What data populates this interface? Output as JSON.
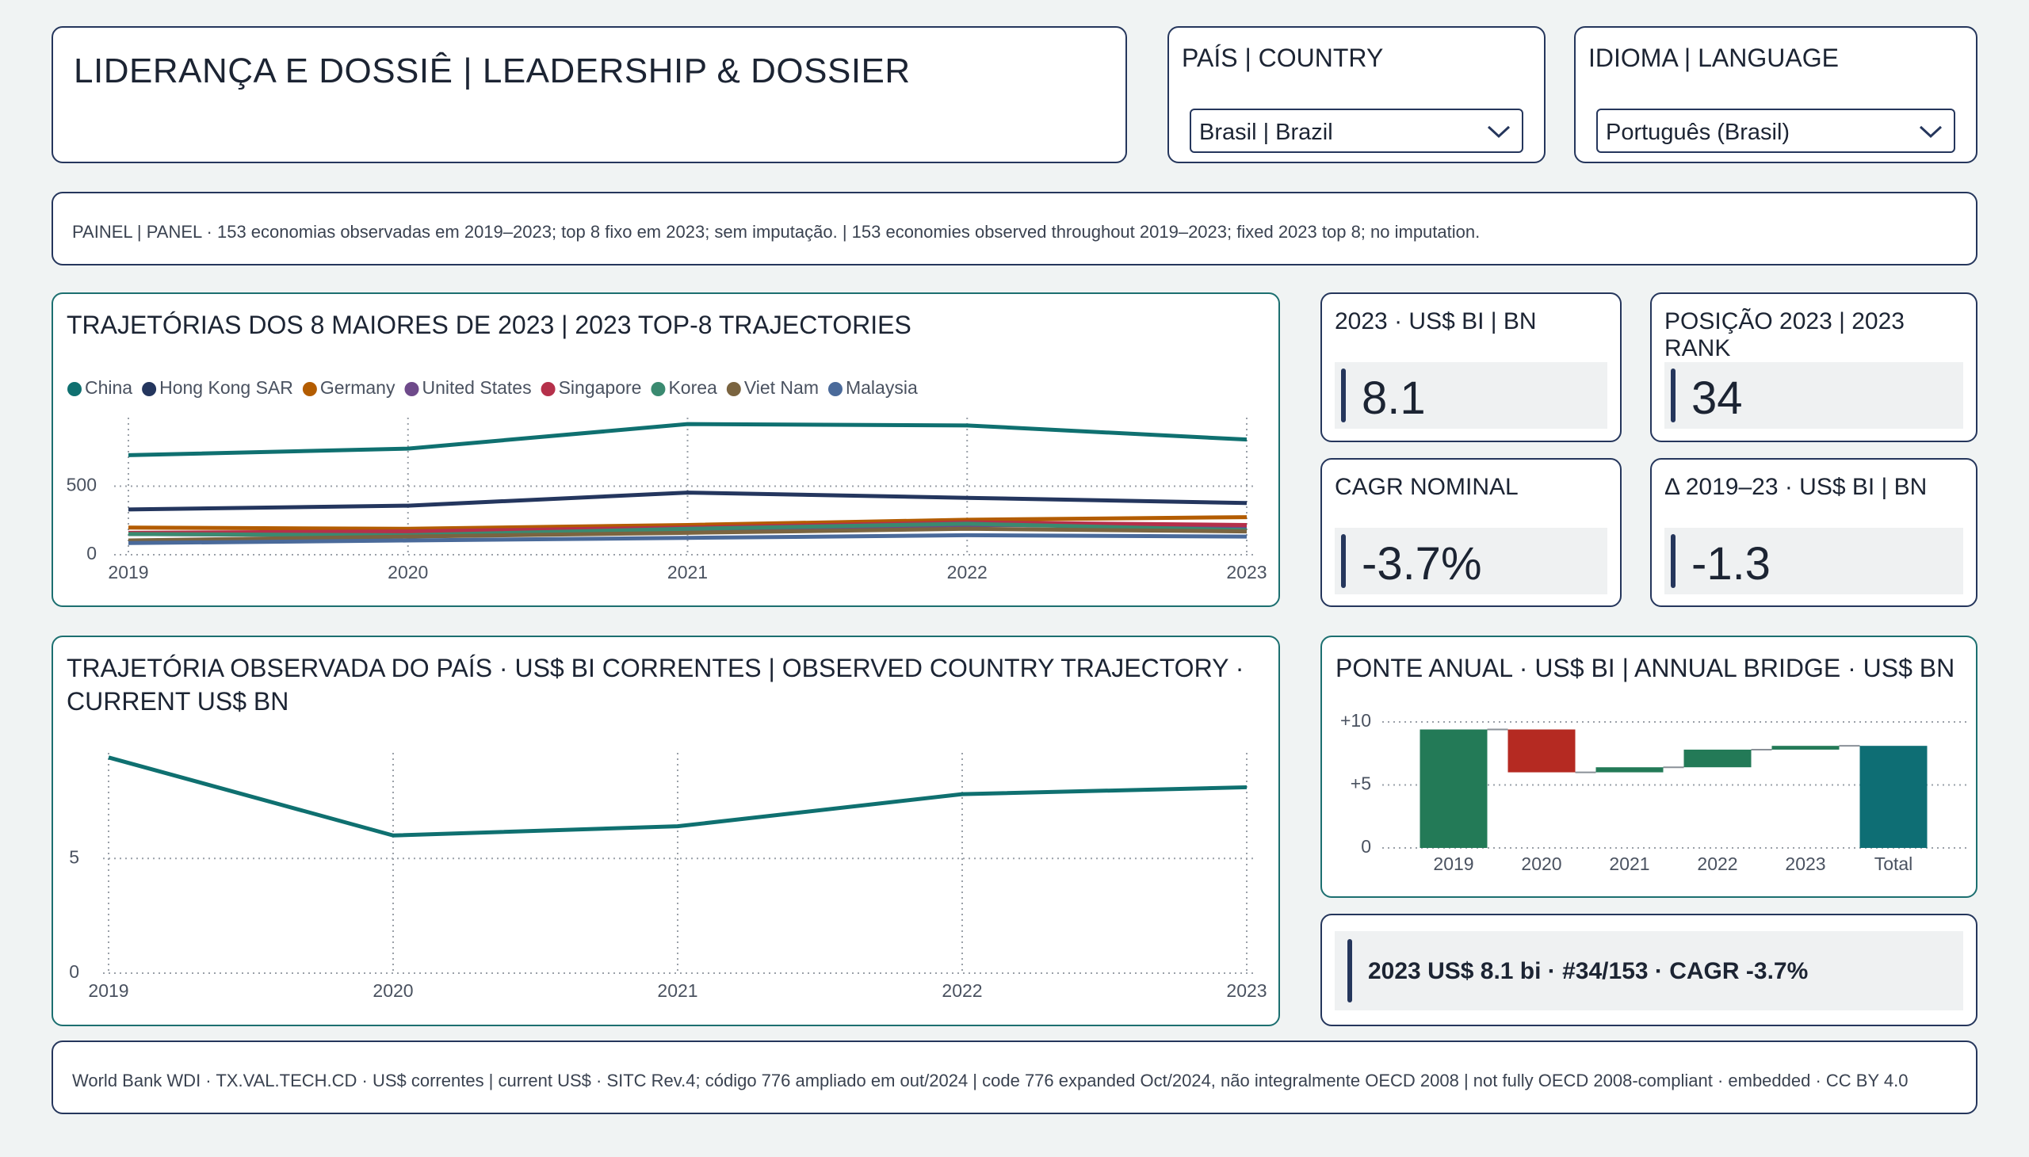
{
  "header": {
    "title": "LIDERANÇA E DOSSIÊ | LEADERSHIP & DOSSIER"
  },
  "filters": [
    {
      "label": "PAÍS | COUNTRY",
      "selected": "Brasil | Brazil"
    },
    {
      "label": "IDIOMA | LANGUAGE",
      "selected": "Português (Brasil)"
    }
  ],
  "panel_note": "PAINEL | PANEL · 153 economias observadas em 2019–2023; top 8 fixo em 2023; sem imputação. | 153 economies observed throughout 2019–2023; fixed 2023 top 8; no imputation.",
  "kpis": [
    {
      "label": "2023 · US$ BI | BN",
      "value": "8.1"
    },
    {
      "label": "POSIÇÃO 2023 | 2023 RANK",
      "value": "34"
    },
    {
      "label": "CAGR NOMINAL",
      "value": "-3.7%"
    },
    {
      "label": "Δ 2019–23 · US$ BI | BN",
      "value": "-1.3"
    }
  ],
  "summary": "2023 US$ 8.1 bi · #34/153 · CAGR -3.7%",
  "footer": "World Bank WDI · TX.VAL.TECH.CD · US$ correntes | current US$ · SITC Rev.4; código 776 ampliado em out/2024 | code 776 expanded Oct/2024, não integralmente OECD 2008 | not fully OECD 2008-compliant · embedded · CC BY 4.0",
  "chart_data": [
    {
      "type": "line",
      "title": "TRAJETÓRIAS DOS 8 MAIORES DE 2023 | 2023 TOP-8 TRAJECTORIES",
      "x": [
        2019,
        2020,
        2021,
        2022,
        2023
      ],
      "series": [
        {
          "name": "China",
          "color": "#0f7070",
          "values": [
            726,
            774,
            953,
            943,
            840
          ]
        },
        {
          "name": "Hong Kong SAR",
          "color": "#24365e",
          "values": [
            330,
            358,
            453,
            415,
            377
          ]
        },
        {
          "name": "Germany",
          "color": "#b35c00",
          "values": [
            198,
            189,
            217,
            255,
            274
          ]
        },
        {
          "name": "United States",
          "color": "#6e4a8a",
          "values": [
            151,
            142,
            179,
            217,
            208
          ]
        },
        {
          "name": "Singapore",
          "color": "#b5304a",
          "values": [
            160,
            170,
            198,
            236,
            217
          ]
        },
        {
          "name": "Korea",
          "color": "#3a8a70",
          "values": [
            151,
            142,
            189,
            226,
            179
          ]
        },
        {
          "name": "Viet Nam",
          "color": "#7a6440",
          "values": [
            104,
            132,
            160,
            189,
            170
          ]
        },
        {
          "name": "Malaysia",
          "color": "#4a6a9a",
          "values": [
            85,
            104,
            123,
            142,
            132
          ]
        }
      ],
      "ylim": [
        0,
        1000
      ],
      "yticks": [
        0,
        500
      ],
      "grid": true,
      "legend": "top-left"
    },
    {
      "type": "line",
      "title": "TRAJETÓRIA OBSERVADA DO PAÍS · US$ BI CORRENTES | OBSERVED COUNTRY TRAJECTORY · CURRENT US$ BN",
      "x": [
        2019,
        2020,
        2021,
        2022,
        2023
      ],
      "series": [
        {
          "color": "#0f7070",
          "values": [
            9.4,
            6.0,
            6.4,
            7.8,
            8.1
          ]
        }
      ],
      "ylim": [
        0,
        9.6
      ],
      "yticks": [
        0,
        5
      ],
      "grid": true
    },
    {
      "type": "waterfall",
      "title": "PONTE ANUAL · US$ BI | ANNUAL BRIDGE · US$ BN",
      "categories": [
        "2019",
        "2020",
        "2021",
        "2022",
        "2023",
        "Total"
      ],
      "values": [
        9.4,
        -3.4,
        0.4,
        1.4,
        0.3,
        8.1
      ],
      "colors": {
        "increase": "#237a57",
        "decrease": "#b52a22",
        "total": "#0e6e74"
      },
      "ylim": [
        0,
        10.5
      ],
      "yticks": [
        0,
        {
          "value": 5,
          "label": "+5"
        },
        {
          "value": 10,
          "label": "+10"
        }
      ],
      "grid": true
    }
  ]
}
